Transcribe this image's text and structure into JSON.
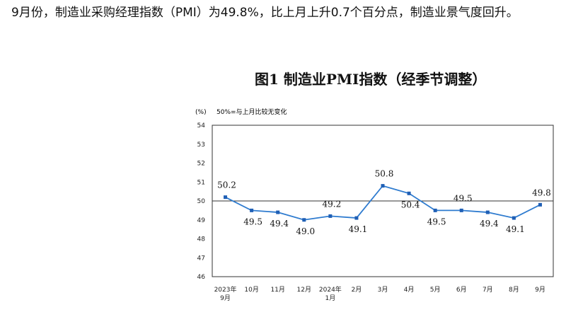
{
  "intro_text": "9月份，制造业采购经理指数（PMI）为49.8%，比上月上升0.7个百分点，制造业景气度回升。",
  "chart_data": {
    "type": "line",
    "title": "图1  制造业PMI指数（经季节调整）",
    "unit_label": "(%)",
    "baseline_note": "50%=与上月比较无变化",
    "categories": [
      [
        "2023年",
        "9月"
      ],
      [
        "10月"
      ],
      [
        "11月"
      ],
      [
        "12月"
      ],
      [
        "2024年",
        "1月"
      ],
      [
        "2月"
      ],
      [
        "3月"
      ],
      [
        "4月"
      ],
      [
        "5月"
      ],
      [
        "6月"
      ],
      [
        "7月"
      ],
      [
        "8月"
      ],
      [
        "9月"
      ]
    ],
    "values": [
      50.2,
      49.5,
      49.4,
      49.0,
      49.2,
      49.1,
      50.8,
      50.4,
      49.5,
      49.5,
      49.4,
      49.1,
      49.8
    ],
    "data_labels": [
      "50.2",
      "49.5",
      "49.4",
      "49.0",
      "49.2",
      "49.1",
      "50.8",
      "50.4",
      "49.5",
      "49.5",
      "49.4",
      "49.1",
      "49.8"
    ],
    "ylim": [
      46,
      54
    ],
    "yticks": [
      "46",
      "47",
      "48",
      "49",
      "50",
      "51",
      "52",
      "53",
      "54"
    ],
    "reference_line": 50,
    "grid": false,
    "colors": {
      "line": "#2e7bcf",
      "marker": "#1f5fb5",
      "reference": "#333333",
      "frame": "#333333"
    }
  }
}
